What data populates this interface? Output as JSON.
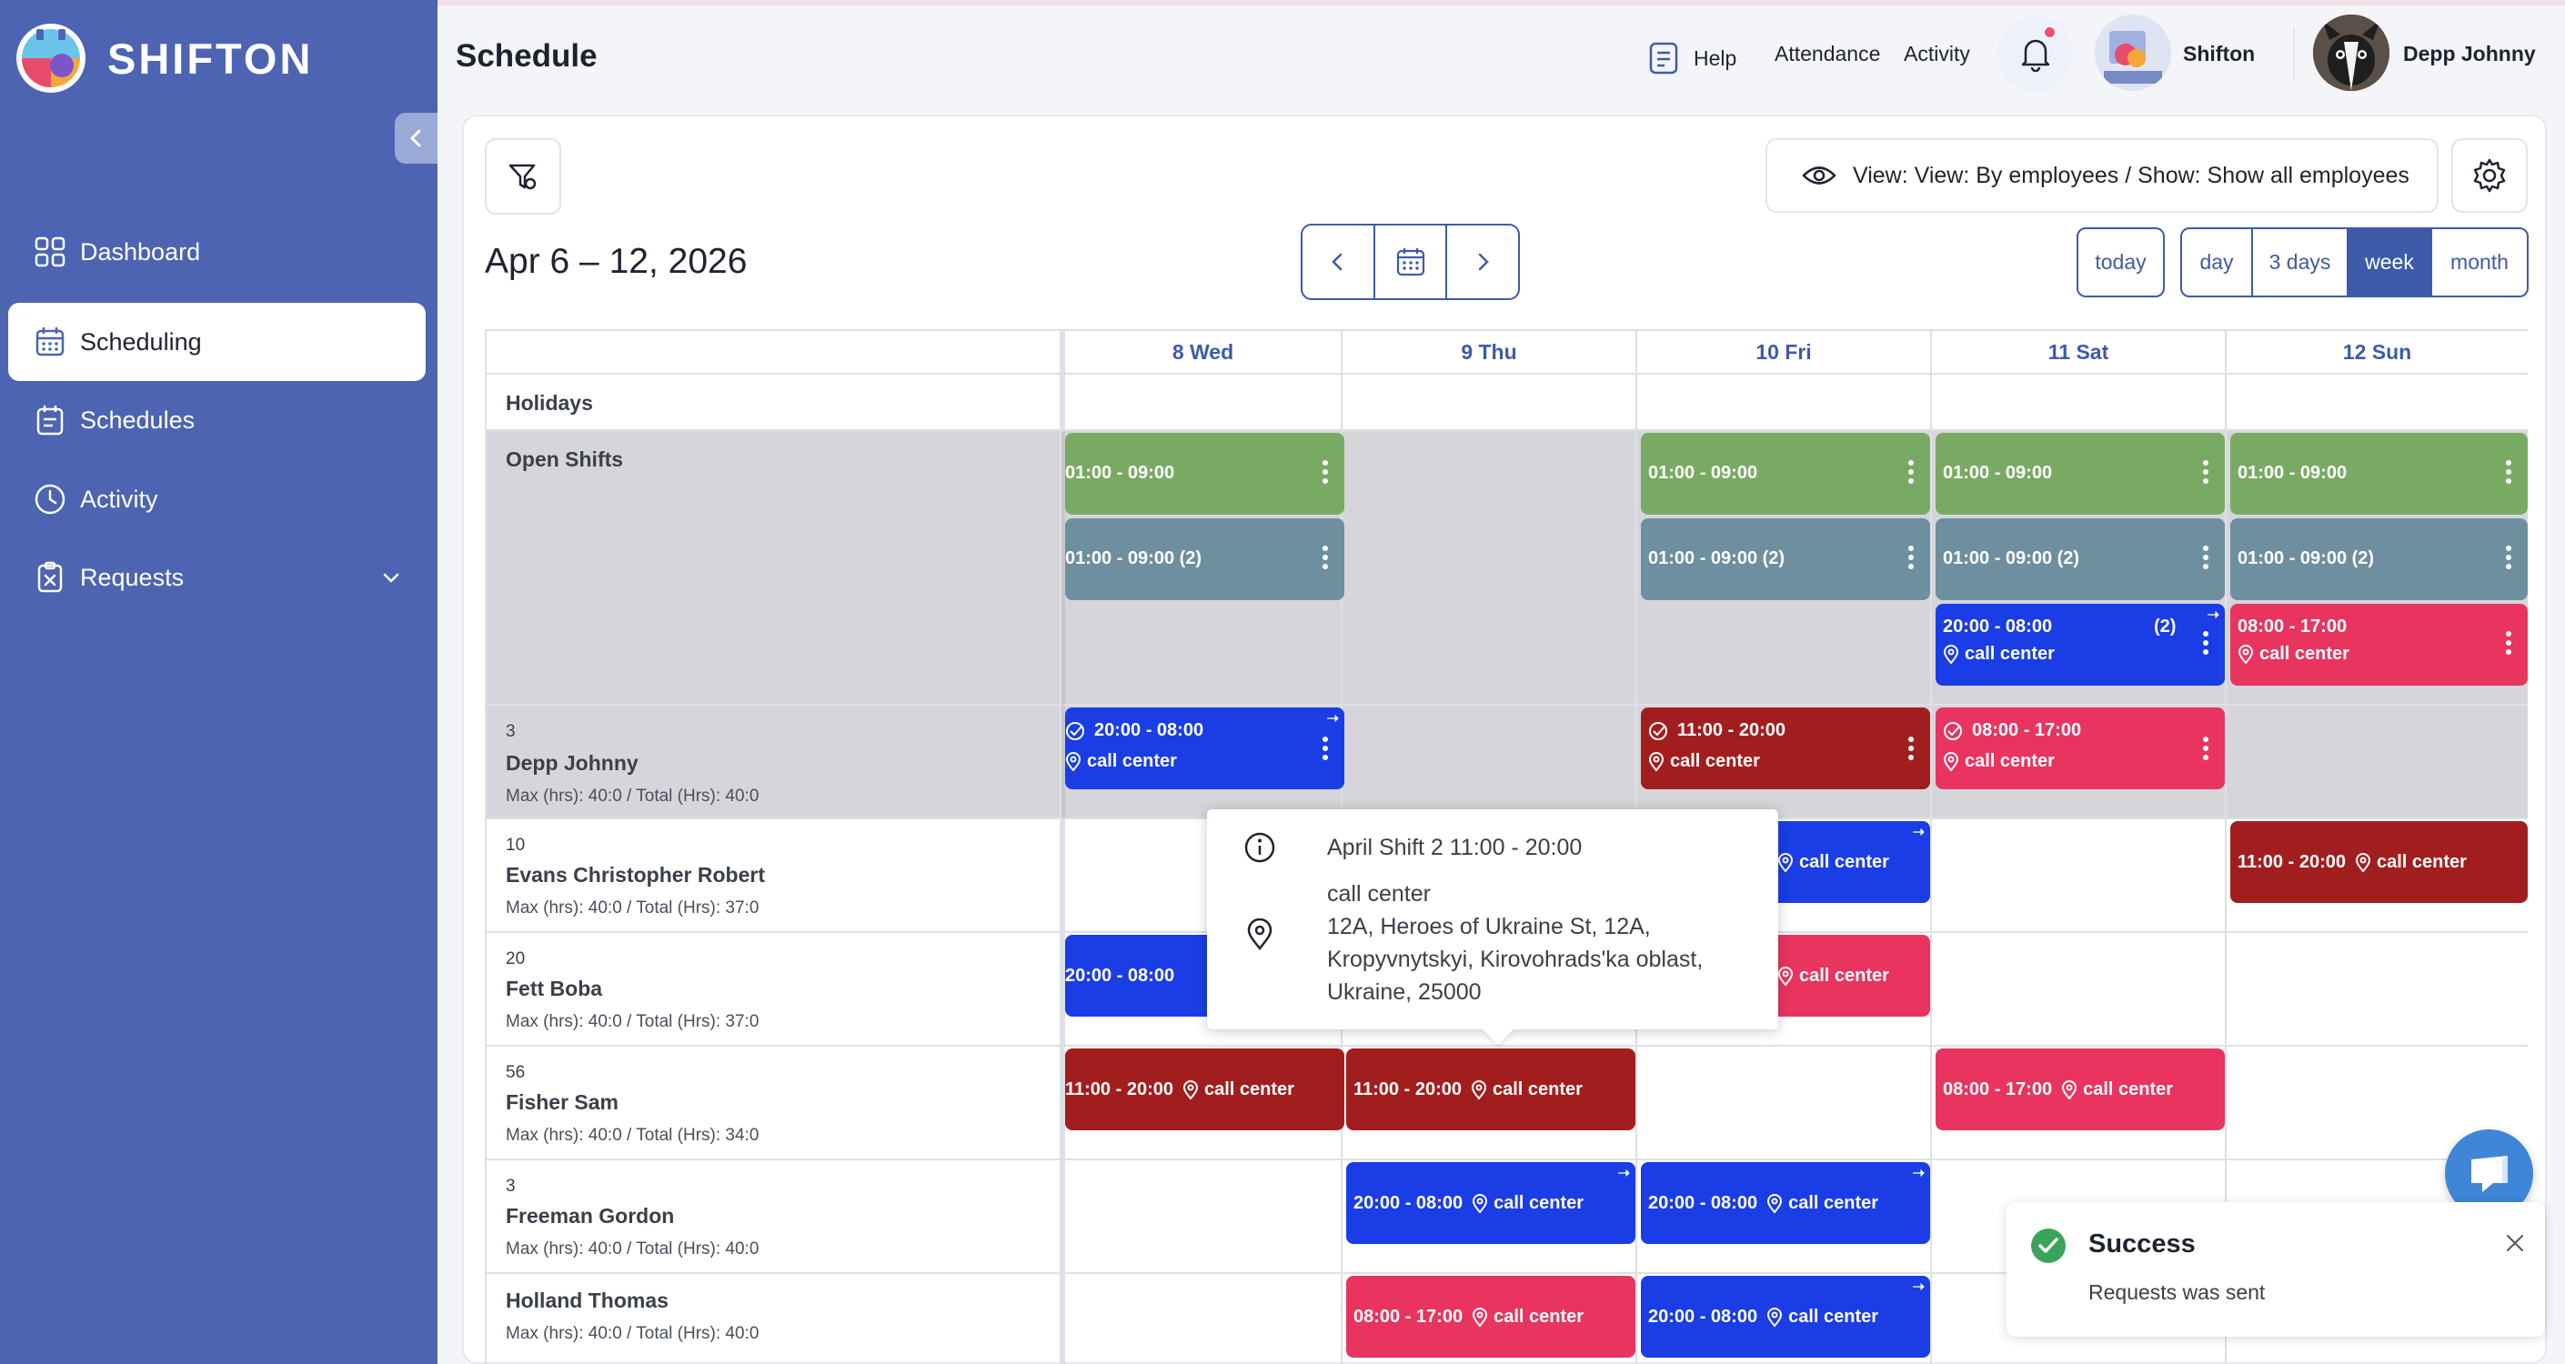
{
  "brand": {
    "name": "SHIFTON"
  },
  "sidebar": {
    "items": [
      {
        "label": "Dashboard",
        "icon": "dashboard-icon"
      },
      {
        "label": "Scheduling",
        "icon": "calendar-icon",
        "active": true
      },
      {
        "label": "Schedules",
        "icon": "schedules-icon"
      },
      {
        "label": "Activity",
        "icon": "clock-icon"
      },
      {
        "label": "Requests",
        "icon": "requests-icon"
      }
    ]
  },
  "topbar": {
    "title": "Schedule",
    "help": "Help",
    "attendance": "Attendance",
    "activity": "Activity",
    "company": "Shifton",
    "user": "Depp Johnny"
  },
  "toolbar": {
    "view_label": "View: View: By employees / Show: Show all employees",
    "date_range": "Apr 6 – 12, 2026",
    "today": "today",
    "views": [
      "day",
      "3 days",
      "week",
      "month"
    ],
    "active_view": "week"
  },
  "days": [
    "8 Wed",
    "9 Thu",
    "10 Fri",
    "11 Sat",
    "12 Sun"
  ],
  "rows": {
    "holidays": "Holidays",
    "open_shifts": "Open Shifts",
    "employees": [
      {
        "num": "3",
        "name": "Depp Johnny",
        "stats": "Max (hrs): 40:0 / Total (Hrs): 40:0"
      },
      {
        "num": "10",
        "name": "Evans Christopher Robert",
        "stats": "Max (hrs): 40:0 / Total (Hrs): 37:0"
      },
      {
        "num": "20",
        "name": "Fett Boba",
        "stats": "Max (hrs): 40:0 / Total (Hrs): 37:0"
      },
      {
        "num": "56",
        "name": "Fisher Sam",
        "stats": "Max (hrs): 40:0 / Total (Hrs): 34:0"
      },
      {
        "num": "3",
        "name": "Freeman Gordon",
        "stats": "Max (hrs): 40:0 / Total (Hrs): 40:0"
      },
      {
        "num": "",
        "name": "Holland Thomas",
        "stats": "Max (hrs): 40:0 / Total (Hrs): 40:0"
      }
    ]
  },
  "shift_colors": {
    "green": "#79aa64",
    "teal": "#6e8f9f",
    "blue": "#1a3de6",
    "pink": "#e8345f",
    "darkred": "#a21e1e"
  },
  "shifts": {
    "open_wed_1": "01:00 - 09:00",
    "open_wed_2": "01:00 - 09:00 (2)",
    "open_fri_1": "01:00 - 09:00",
    "open_fri_2": "01:00 - 09:00 (2)",
    "open_sat_1": "01:00 - 09:00",
    "open_sat_2": "01:00 - 09:00 (2)",
    "open_sat_3": "20:00 - 08:00",
    "open_sat_3_count": "(2)",
    "open_sun_1": "01:00 - 09:00",
    "open_sun_2": "01:00 - 09:00 (2)",
    "open_sun_3": "08:00 - 17:00",
    "depp_wed": "20:00 - 08:00",
    "depp_fri": "11:00 - 20:00",
    "depp_sat": "08:00 - 17:00",
    "evans_sun": "11:00 - 20:00",
    "fett_wed": "20:00 - 08:00",
    "fisher_wed": "11:00 - 20:00",
    "fisher_thu": "11:00 - 20:00",
    "fisher_sat": "08:00 - 17:00",
    "freeman_thu": "20:00 - 08:00",
    "freeman_fri": "20:00 - 08:00",
    "holland_thu": "08:00 - 17:00",
    "holland_fri": "20:00 - 08:00",
    "location": "call center"
  },
  "tooltip": {
    "title": "April Shift 2 11:00 - 20:00",
    "location_name": "call center",
    "address_line1": "12A, Heroes of Ukraine St, 12A,",
    "address_line2": "Kropyvnytskyi, Kirovohrads'ka oblast,",
    "address_line3": "Ukraine, 25000"
  },
  "toast": {
    "title": "Success",
    "message": "Requests was sent"
  }
}
